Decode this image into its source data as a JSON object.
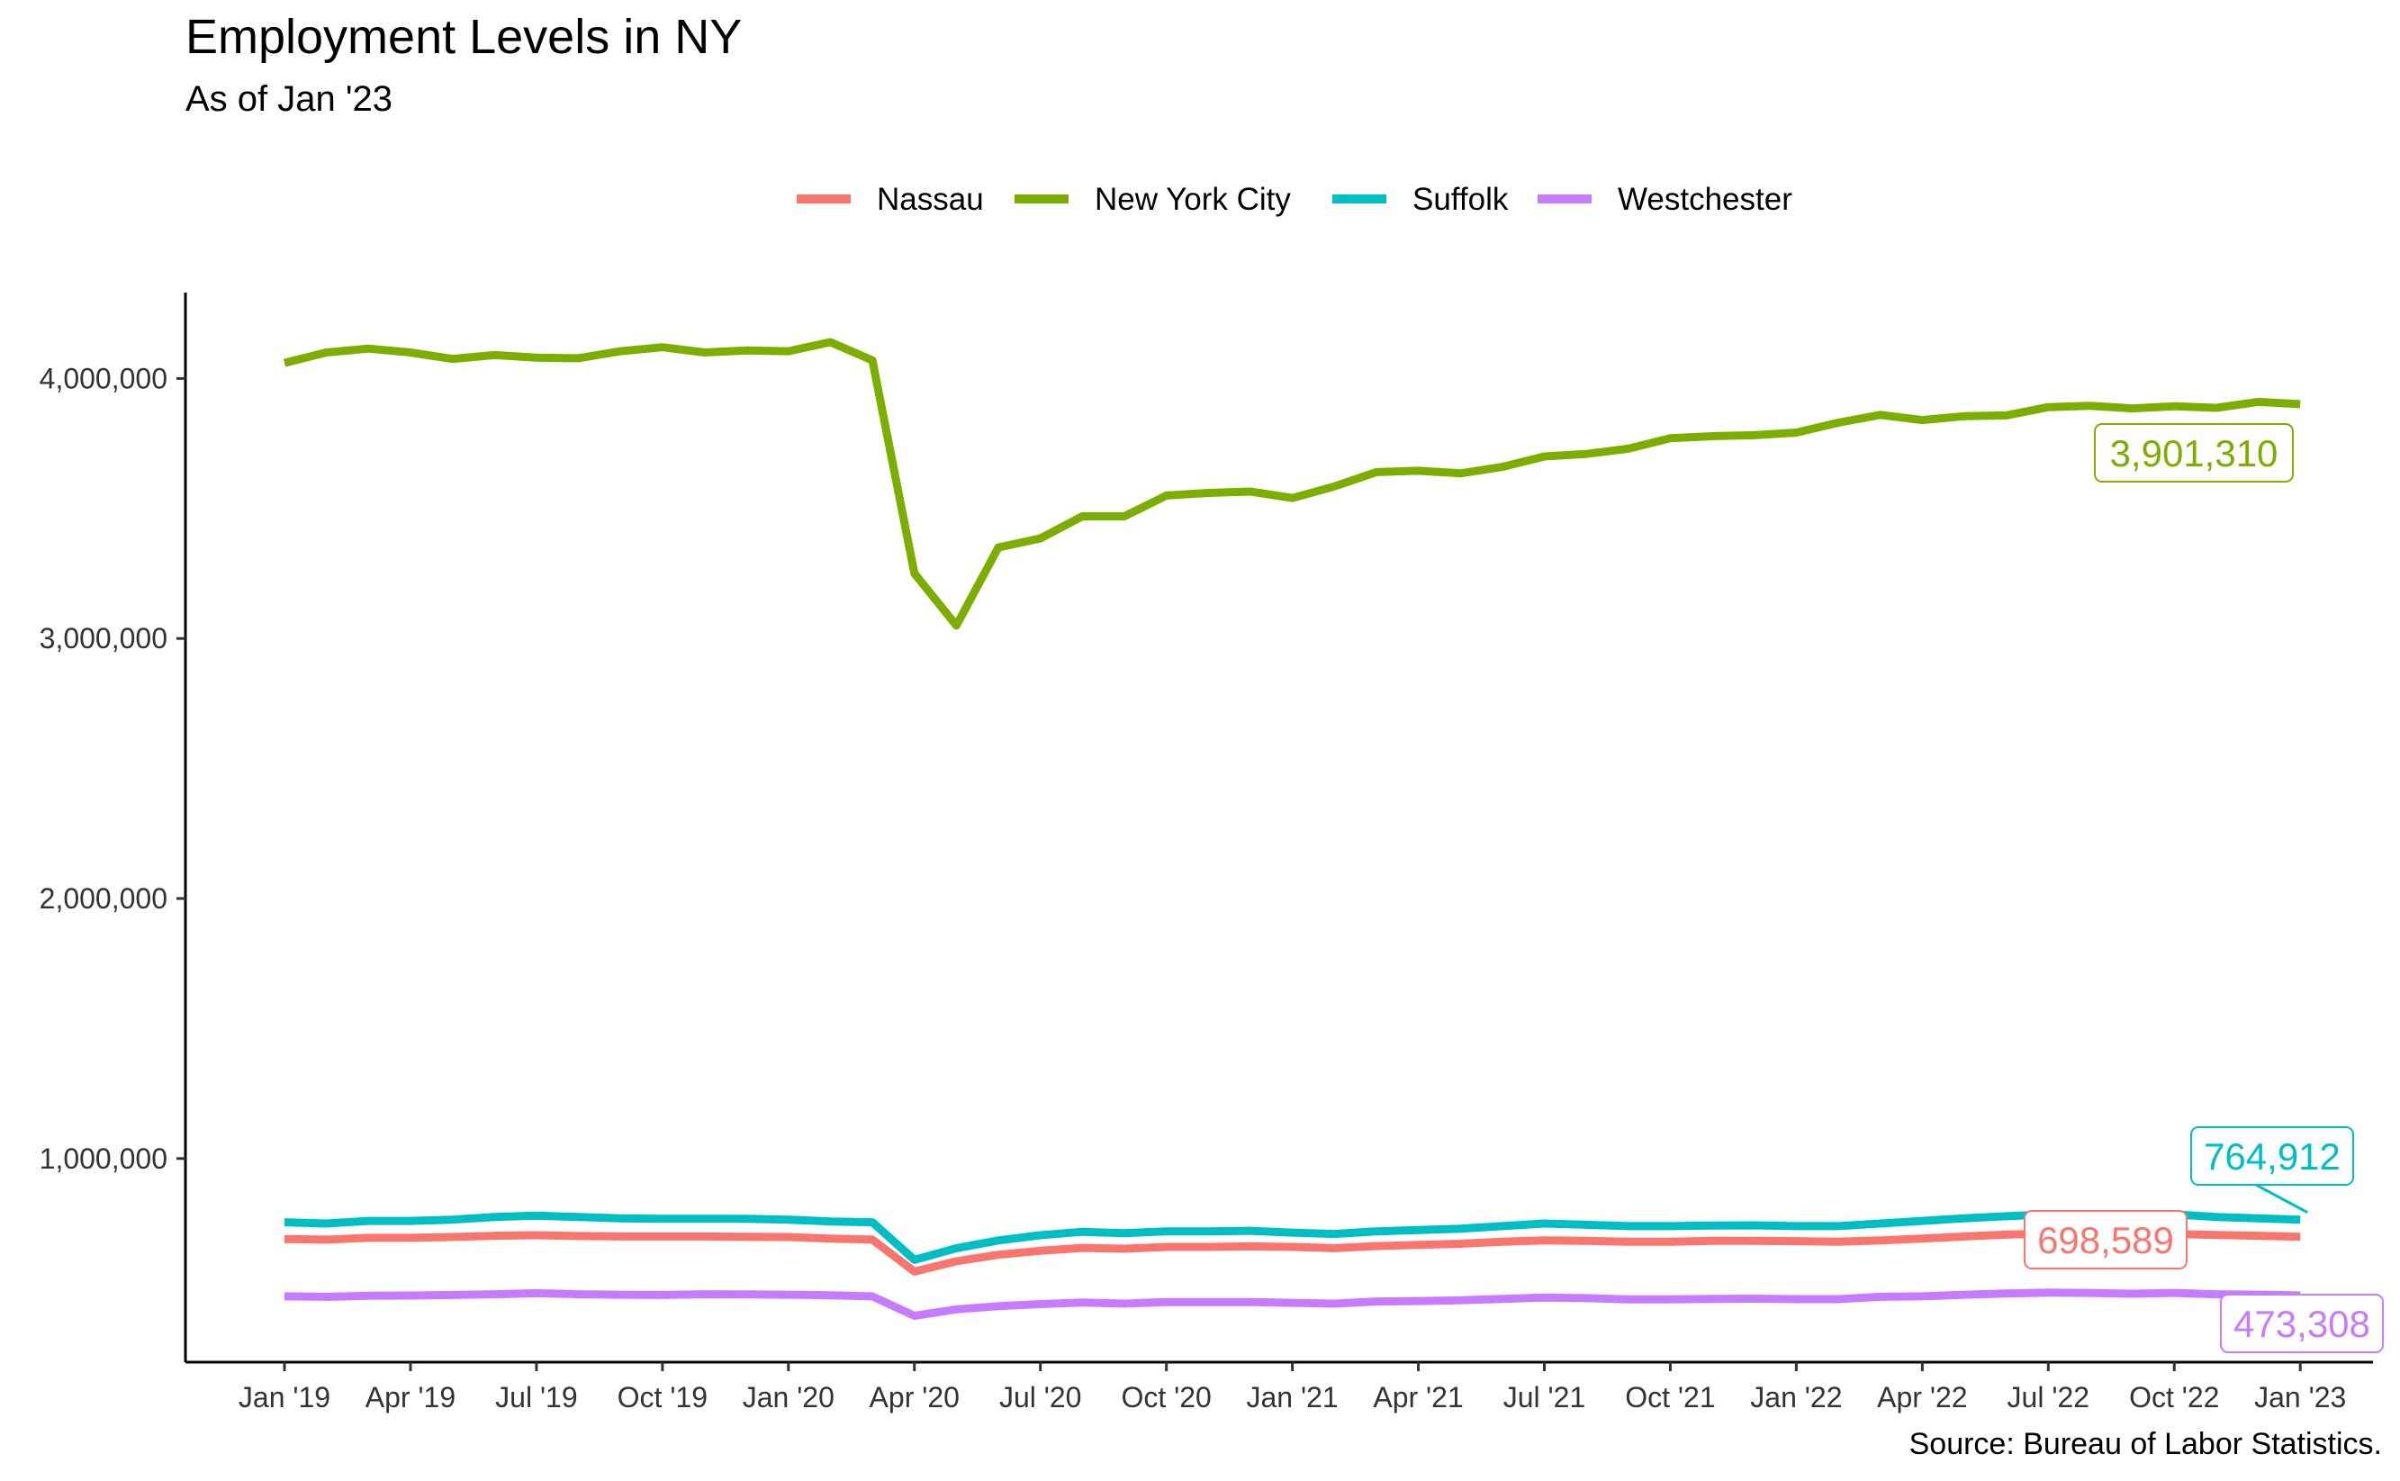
{
  "chart_data": {
    "type": "line",
    "title": "Employment Levels in NY",
    "subtitle": "As of Jan '23",
    "caption": "Source: Bureau of Labor Statistics.",
    "xlabel": "",
    "ylabel": "",
    "x_tick_labels": [
      "Jan '19",
      "Apr '19",
      "Jul '19",
      "Oct '19",
      "Jan '20",
      "Apr '20",
      "Jul '20",
      "Oct '20",
      "Jan '21",
      "Apr '21",
      "Jul '21",
      "Oct '21",
      "Jan '22",
      "Apr '22",
      "Jul '22",
      "Oct '22",
      "Jan '23"
    ],
    "y_tick_labels": [
      "1,000,000",
      "2,000,000",
      "3,000,000",
      "4,000,000"
    ],
    "y_ticks": [
      1000000,
      2000000,
      3000000,
      4000000
    ],
    "ylim": [
      425000,
      4330000
    ],
    "grid": false,
    "legend_position": "top",
    "x": [
      "Jan '19",
      "Feb '19",
      "Mar '19",
      "Apr '19",
      "May '19",
      "Jun '19",
      "Jul '19",
      "Aug '19",
      "Sep '19",
      "Oct '19",
      "Nov '19",
      "Dec '19",
      "Jan '20",
      "Feb '20",
      "Mar '20",
      "Apr '20",
      "May '20",
      "Jun '20",
      "Jul '20",
      "Aug '20",
      "Sep '20",
      "Oct '20",
      "Nov '20",
      "Dec '20",
      "Jan '21",
      "Feb '21",
      "Mar '21",
      "Apr '21",
      "May '21",
      "Jun '21",
      "Jul '21",
      "Aug '21",
      "Sep '21",
      "Oct '21",
      "Nov '21",
      "Dec '21",
      "Jan '22",
      "Feb '22",
      "Mar '22",
      "Apr '22",
      "May '22",
      "Jun '22",
      "Jul '22",
      "Aug '22",
      "Sep '22",
      "Oct '22",
      "Nov '22",
      "Dec '22",
      "Jan '23"
    ],
    "series": [
      {
        "name": "Nassau",
        "color": "#F8766D",
        "values": [
          690000,
          688000,
          695000,
          695000,
          698000,
          703000,
          705000,
          702000,
          700000,
          700000,
          700000,
          699000,
          698000,
          692000,
          688000,
          565000,
          605000,
          630000,
          645000,
          656000,
          653000,
          660000,
          660000,
          662000,
          660000,
          655000,
          663000,
          668000,
          672000,
          680000,
          685000,
          683000,
          680000,
          680000,
          683000,
          683000,
          682000,
          680000,
          685000,
          692000,
          700000,
          707000,
          712000,
          712000,
          708000,
          710000,
          706000,
          703000,
          698589
        ],
        "end_label": "698,589"
      },
      {
        "name": "New York City",
        "color": "#7CAE00",
        "values": [
          4060000,
          4100000,
          4115000,
          4100000,
          4075000,
          4090000,
          4080000,
          4078000,
          4105000,
          4120000,
          4100000,
          4108000,
          4105000,
          4140000,
          4070000,
          3250000,
          3050000,
          3350000,
          3385000,
          3470000,
          3470000,
          3550000,
          3560000,
          3565000,
          3540000,
          3585000,
          3640000,
          3645000,
          3635000,
          3660000,
          3700000,
          3710000,
          3730000,
          3770000,
          3778000,
          3782000,
          3792000,
          3830000,
          3860000,
          3840000,
          3855000,
          3858000,
          3890000,
          3895000,
          3885000,
          3893000,
          3887000,
          3910000,
          3901310
        ],
        "end_label": "3,901,310"
      },
      {
        "name": "Suffolk",
        "color": "#00BFC4",
        "values": [
          755000,
          750000,
          760000,
          760000,
          765000,
          775000,
          780000,
          775000,
          770000,
          768000,
          768000,
          768000,
          765000,
          758000,
          755000,
          610000,
          655000,
          685000,
          705000,
          718000,
          713000,
          720000,
          720000,
          722000,
          715000,
          710000,
          720000,
          725000,
          730000,
          740000,
          750000,
          745000,
          740000,
          740000,
          742000,
          743000,
          740000,
          740000,
          750000,
          760000,
          770000,
          778000,
          785000,
          785000,
          780000,
          785000,
          775000,
          770000,
          764912
        ],
        "end_label": "764,912"
      },
      {
        "name": "Westchester",
        "color": "#C77CFF",
        "values": [
          470000,
          468000,
          472000,
          473000,
          475000,
          478000,
          482000,
          478000,
          476000,
          475000,
          478000,
          477000,
          476000,
          474000,
          470000,
          395000,
          420000,
          432000,
          440000,
          446000,
          442000,
          448000,
          448000,
          448000,
          445000,
          442000,
          450000,
          452000,
          455000,
          460000,
          465000,
          463000,
          458000,
          458000,
          460000,
          461000,
          459000,
          459000,
          468000,
          470000,
          476000,
          481000,
          484000,
          483000,
          480000,
          483000,
          478000,
          476000,
          473308
        ],
        "end_label": "473,308"
      }
    ]
  }
}
